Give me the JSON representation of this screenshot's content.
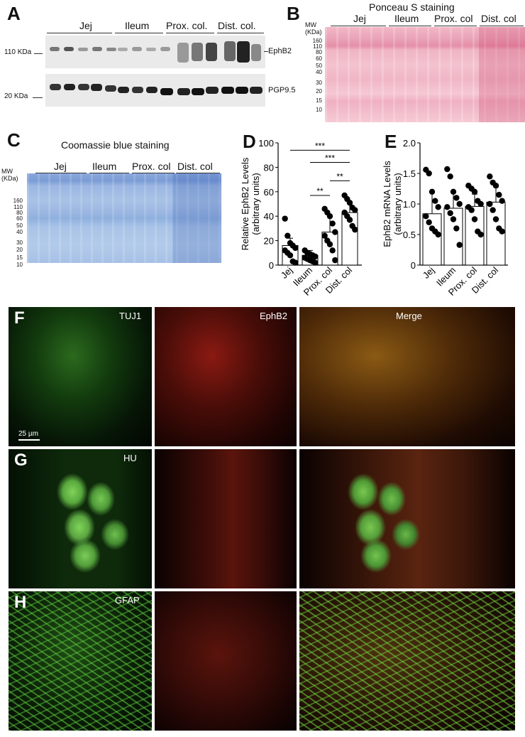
{
  "panel_A": {
    "label": "A",
    "groups": [
      "Jej",
      "Ileum",
      "Prox. col.",
      "Dist. col."
    ],
    "top_blot": {
      "mw": "110 KDa",
      "protein": "EphB2"
    },
    "bottom_blot": {
      "mw": "20 KDa",
      "protein": "PGP9.5"
    }
  },
  "panel_B": {
    "label": "B",
    "title": "Ponceau S staining",
    "mw_header": [
      "MW",
      "(KDa)"
    ],
    "groups": [
      "Jej",
      "Ileum",
      "Prox. col",
      "Dist. col"
    ],
    "markers": [
      "160",
      "110",
      "80",
      "60",
      "50",
      "40",
      "30",
      "20",
      "15",
      "10"
    ]
  },
  "panel_C": {
    "label": "C",
    "title": "Coomassie blue staining",
    "mw_header": [
      "MW",
      "(KDa)"
    ],
    "groups": [
      "Jej",
      "Ileum",
      "Prox. col",
      "Dist. col"
    ],
    "markers": [
      "160",
      "110",
      "80",
      "60",
      "50",
      "40",
      "30",
      "20",
      "15",
      "10"
    ]
  },
  "panel_D": {
    "label": "D",
    "significance": [
      "***",
      "***",
      "**",
      "**"
    ]
  },
  "panel_E": {
    "label": "E"
  },
  "microscopy": {
    "rows": [
      {
        "panel": "F",
        "labels": [
          "TUJ1",
          "EphB2",
          "Merge"
        ],
        "scale_bar": "25 µm"
      },
      {
        "panel": "G",
        "labels": [
          "HU",
          "",
          ""
        ]
      },
      {
        "panel": "H",
        "labels": [
          "GFAP",
          "",
          ""
        ]
      }
    ]
  },
  "chart_data": [
    {
      "type": "bar",
      "categories": [
        "Jej",
        "Ileum",
        "Prox. col",
        "Dist. col"
      ],
      "values": [
        16,
        8,
        27,
        43
      ],
      "errors": [
        6,
        4,
        13,
        7
      ],
      "points": [
        [
          38,
          24,
          18,
          16,
          14,
          12,
          10,
          8,
          3,
          2
        ],
        [
          12,
          10,
          9,
          8,
          7,
          6,
          5,
          4,
          3,
          2
        ],
        [
          46,
          43,
          40,
          34,
          27,
          24,
          20,
          17,
          12,
          4
        ],
        [
          57,
          54,
          51,
          47,
          45,
          43,
          40,
          37,
          32,
          29
        ]
      ],
      "ylabel": "Relative EphB2 Levels\n(arbitrary units)",
      "ylim": [
        0,
        100
      ],
      "yticks": [
        0,
        20,
        40,
        60,
        80,
        100
      ]
    },
    {
      "type": "bar",
      "categories": [
        "Jej",
        "Ileum",
        "Prox. col",
        "Dist. col"
      ],
      "values": [
        0.84,
        0.93,
        0.96,
        1.03
      ],
      "errors": [
        0.35,
        0.28,
        0.2,
        0.25
      ],
      "points": [
        [
          1.56,
          1.5,
          1.2,
          1.05,
          0.95,
          0.8,
          0.7,
          0.6,
          0.55,
          0.5
        ],
        [
          1.57,
          1.45,
          1.2,
          1.1,
          1.0,
          0.95,
          0.85,
          0.75,
          0.6,
          0.33
        ],
        [
          1.3,
          1.25,
          1.2,
          1.05,
          1.0,
          0.95,
          0.9,
          0.75,
          0.55,
          0.5
        ],
        [
          1.45,
          1.35,
          1.3,
          1.15,
          1.05,
          1.0,
          0.9,
          0.75,
          0.6,
          0.55
        ]
      ],
      "ylabel": "EphB2 mRNA Levels\n(arbitrary units)",
      "ylim": [
        0,
        2.0
      ],
      "yticks": [
        "0",
        "0.5",
        "1.0",
        "1.5",
        "2.0"
      ]
    }
  ]
}
